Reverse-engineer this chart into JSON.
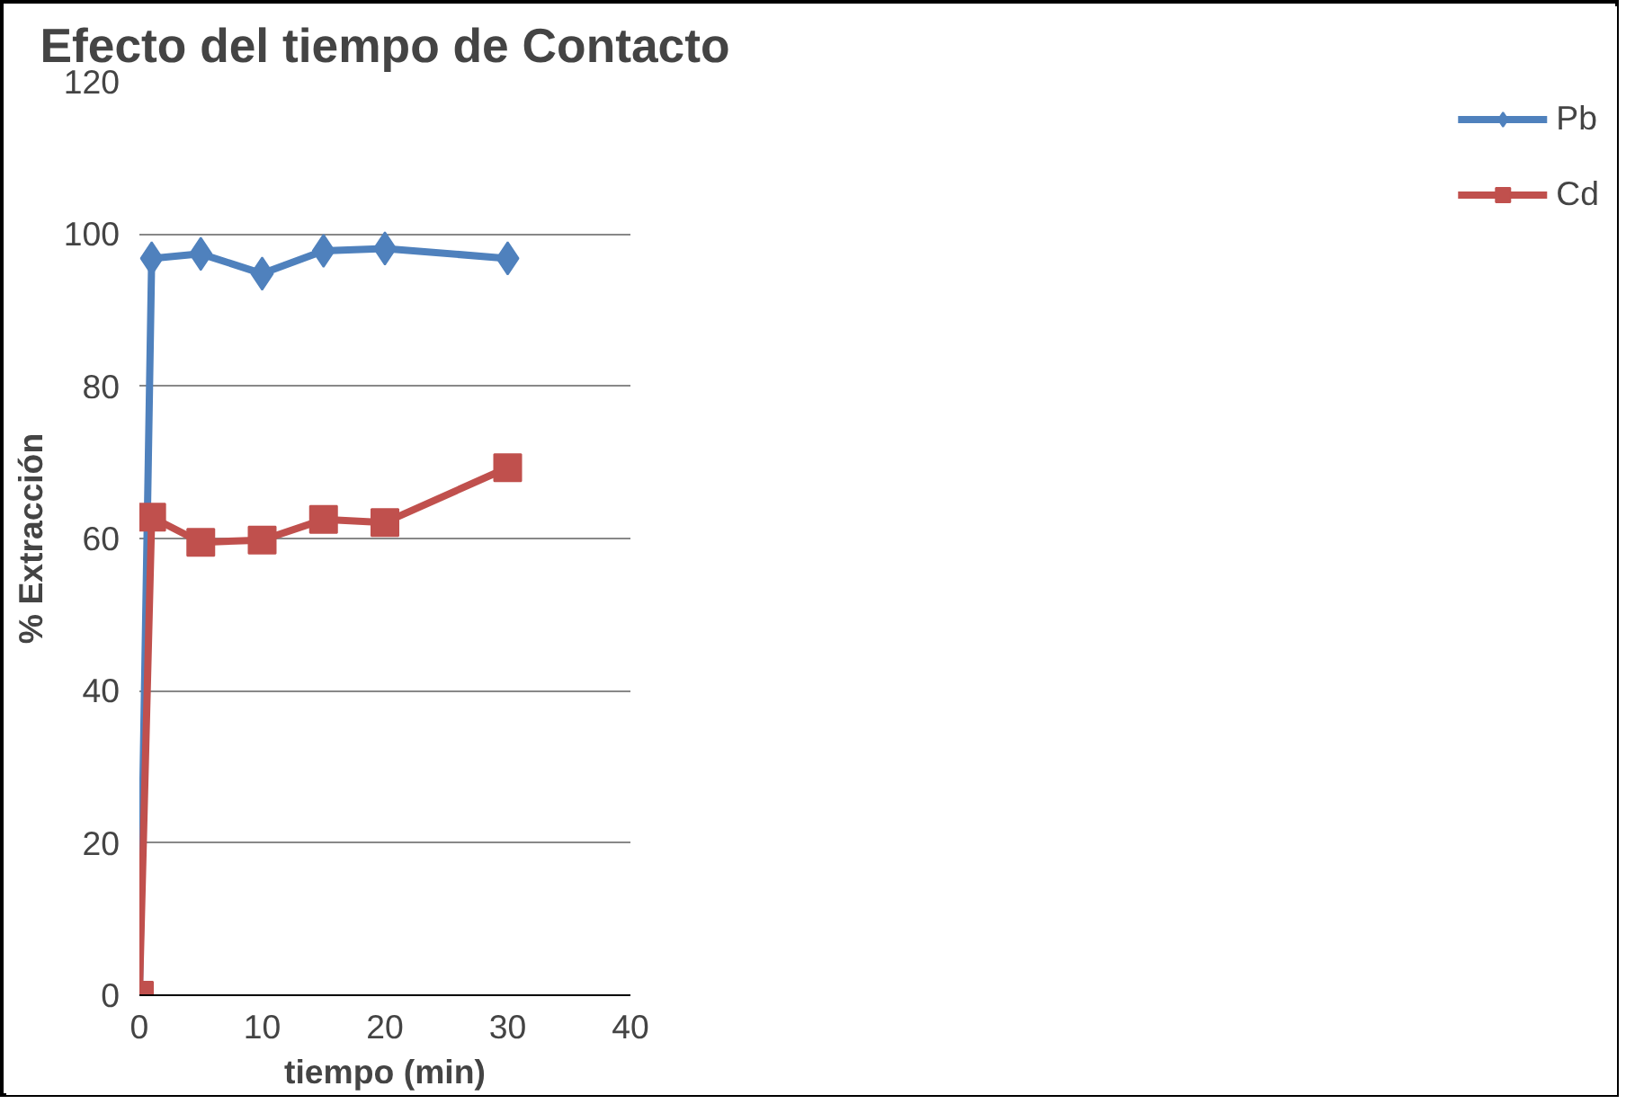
{
  "chart_data": {
    "type": "line",
    "title": "Efecto del tiempo de Contacto",
    "xlabel": "tiempo (min)",
    "ylabel": "% Extracción",
    "x": [
      0,
      1,
      5,
      10,
      15,
      20,
      30
    ],
    "series": [
      {
        "name": "Pb",
        "color": "#4f81bd",
        "marker": "diamond",
        "values": [
          0,
          96.8,
          97.4,
          94.8,
          97.8,
          98.1,
          96.8
        ]
      },
      {
        "name": "Cd",
        "color": "#c0504d",
        "marker": "square",
        "values": [
          0,
          62.8,
          59.5,
          59.8,
          62.5,
          62.1,
          69.3
        ]
      }
    ],
    "xlim": [
      0,
      40
    ],
    "xticks": [
      0,
      10,
      20,
      30,
      40
    ],
    "ylim": [
      0,
      120
    ],
    "yticks": [
      0,
      20,
      40,
      60,
      80,
      100,
      120
    ],
    "grid": "y",
    "legend": "right",
    "line_style": "solid"
  }
}
